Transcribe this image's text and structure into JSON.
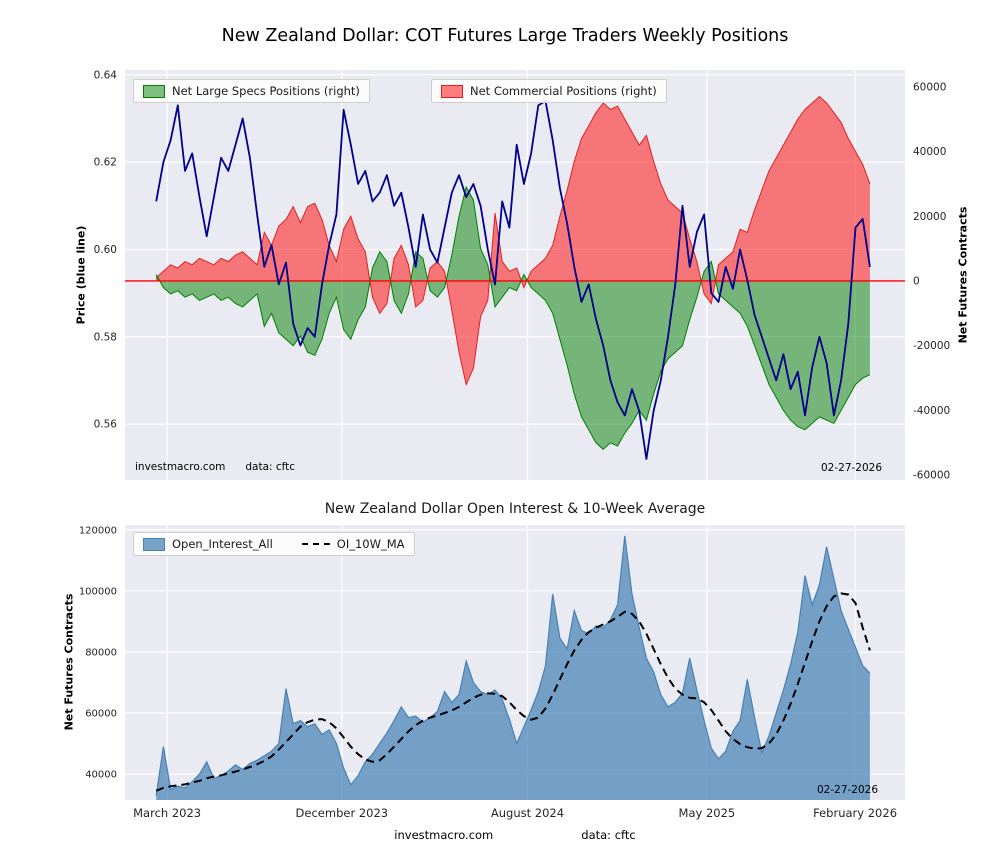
{
  "style": {
    "figure_bg": "#ffffff",
    "plot_bg": "#eaeaf2",
    "grid_color": "#ffffff"
  },
  "footer": {
    "site": "investmacro.com",
    "source": "data: cftc"
  },
  "chart_data": [
    {
      "type": "line+area",
      "title": "New Zealand Dollar: COT Futures Large Traders Weekly Positions",
      "x_domain": [
        0.04,
        0.955
      ],
      "x_ticks": {
        "labels": [
          "March 2023",
          "December 2023",
          "August 2024",
          "May 2025",
          "February 2026"
        ],
        "positions": [
          0.054,
          0.278,
          0.516,
          0.746,
          0.936
        ],
        "show_labels": false
      },
      "y_left": {
        "label": "Price (blue line)",
        "range": [
          0.5472,
          0.6411
        ],
        "tick_labels": [
          "0.64",
          "0.62",
          "0.60",
          "0.58",
          "0.56"
        ],
        "tick_values": [
          0.64,
          0.62,
          0.6,
          0.58,
          0.56
        ]
      },
      "y_right": {
        "label": "Net Futures Contracts",
        "range": [
          -61500,
          65200
        ],
        "tick_labels": [
          "60000",
          "40000",
          "20000",
          "0",
          "-20000",
          "-40000",
          "-60000"
        ],
        "tick_values": [
          60000,
          40000,
          20000,
          0,
          -20000,
          -40000,
          -60000
        ]
      },
      "zero_line_color": "#ff0000",
      "annotations": {
        "watermark": "investmacro.com",
        "source": "data: cftc",
        "date": "02-27-2026"
      },
      "series": [
        {
          "name": "Price (blue line)",
          "type": "line",
          "axis": "left",
          "color": "#00008b",
          "values": [
            0.611,
            0.62,
            0.625,
            0.633,
            0.618,
            0.622,
            0.612,
            0.603,
            0.612,
            0.621,
            0.618,
            0.624,
            0.63,
            0.621,
            0.608,
            0.596,
            0.601,
            0.592,
            0.597,
            0.583,
            0.578,
            0.582,
            0.58,
            0.592,
            0.601,
            0.608,
            0.632,
            0.624,
            0.615,
            0.618,
            0.611,
            0.613,
            0.617,
            0.61,
            0.613,
            0.605,
            0.596,
            0.608,
            0.6,
            0.597,
            0.605,
            0.613,
            0.617,
            0.612,
            0.615,
            0.61,
            0.6,
            0.592,
            0.611,
            0.605,
            0.624,
            0.615,
            0.622,
            0.633,
            0.634,
            0.625,
            0.614,
            0.606,
            0.596,
            0.588,
            0.592,
            0.584,
            0.578,
            0.57,
            0.565,
            0.562,
            0.568,
            0.563,
            0.552,
            0.563,
            0.57,
            0.58,
            0.592,
            0.61,
            0.596,
            0.604,
            0.608,
            0.59,
            0.588,
            0.596,
            0.591,
            0.6,
            0.593,
            0.585,
            0.58,
            0.575,
            0.57,
            0.576,
            0.568,
            0.572,
            0.562,
            0.573,
            0.58,
            0.574,
            0.562,
            0.57,
            0.583,
            0.605,
            0.607,
            0.596
          ]
        },
        {
          "name": "Net Large Specs Positions (right)",
          "type": "area",
          "axis": "right",
          "color": "#008000",
          "fill": "rgba(0,128,0,0.5)",
          "values": [
            2000,
            -2000,
            -4000,
            -3000,
            -5000,
            -4000,
            -6000,
            -5000,
            -4000,
            -6000,
            -5000,
            -7000,
            -8000,
            -6000,
            -4000,
            -14000,
            -10000,
            -16000,
            -18000,
            -20000,
            -17000,
            -22000,
            -23000,
            -18000,
            -10000,
            -5000,
            -15000,
            -18000,
            -12000,
            -8000,
            4000,
            9000,
            6000,
            -6000,
            -10000,
            -4000,
            9000,
            7000,
            -3000,
            -5000,
            -2000,
            8000,
            20000,
            29000,
            25000,
            10000,
            5000,
            -8000,
            -5000,
            -2000,
            -3000,
            2000,
            -2000,
            -4000,
            -6000,
            -10000,
            -18000,
            -26000,
            -35000,
            -42000,
            -46000,
            -50000,
            -52000,
            -50000,
            -51000,
            -47000,
            -44000,
            -40000,
            -43000,
            -35000,
            -28000,
            -24000,
            -22000,
            -20000,
            -12000,
            -5000,
            3000,
            6000,
            -4000,
            -6000,
            -8000,
            -10000,
            -14000,
            -20000,
            -26000,
            -32000,
            -36000,
            -40000,
            -43000,
            -45000,
            -46000,
            -44000,
            -42000,
            -43000,
            -44000,
            -40000,
            -36000,
            -32000,
            -30000,
            -29000
          ]
        },
        {
          "name": "Net Commercial Positions (right)",
          "type": "area",
          "axis": "right",
          "color": "#e02020",
          "fill": "rgba(255,0,0,0.5)",
          "values": [
            1000,
            3000,
            5000,
            4000,
            6000,
            5000,
            7000,
            6000,
            5000,
            7000,
            6000,
            8000,
            9000,
            7000,
            5000,
            15000,
            11000,
            17000,
            19000,
            23000,
            18000,
            23000,
            24000,
            19000,
            11000,
            6000,
            16000,
            20000,
            13000,
            9000,
            -5000,
            -10000,
            -7000,
            7000,
            11000,
            5000,
            -8000,
            -6000,
            4000,
            6000,
            3000,
            -9000,
            -22000,
            -32000,
            -27000,
            -11000,
            -6000,
            21000,
            6000,
            3000,
            4000,
            -2000,
            3000,
            5000,
            7000,
            11000,
            20000,
            28000,
            37000,
            44000,
            48000,
            52000,
            55000,
            53000,
            54000,
            50000,
            46000,
            42000,
            45000,
            37000,
            30000,
            25000,
            23000,
            21000,
            13000,
            6000,
            -4000,
            -7000,
            5000,
            7000,
            9000,
            16000,
            15000,
            22000,
            28000,
            34000,
            38000,
            42000,
            46000,
            50000,
            53000,
            55000,
            57000,
            55000,
            52000,
            49000,
            44000,
            40000,
            36000,
            30000
          ]
        }
      ]
    },
    {
      "type": "area+line",
      "title": "New Zealand Dollar Open Interest & 10-Week Average",
      "x_domain": [
        0.04,
        0.955
      ],
      "x_ticks": {
        "labels": [
          "March 2023",
          "December 2023",
          "August 2024",
          "May 2025",
          "February 2026"
        ],
        "positions": [
          0.054,
          0.278,
          0.516,
          0.746,
          0.936
        ],
        "show_labels": true
      },
      "y": {
        "label": "Net Futures Contracts",
        "range": [
          31500,
          121600
        ],
        "tick_labels": [
          "120000",
          "100000",
          "80000",
          "60000",
          "40000"
        ],
        "tick_values": [
          120000,
          100000,
          80000,
          60000,
          40000
        ]
      },
      "annotations": {
        "date": "02-27-2026"
      },
      "series": [
        {
          "name": "Open_Interest_All",
          "type": "area",
          "color": "#4682b4",
          "fill": "rgba(70,130,180,0.72)",
          "values": [
            33000,
            49000,
            35000,
            36000,
            35500,
            37500,
            40000,
            44000,
            38500,
            39500,
            41000,
            43000,
            41500,
            43500,
            44500,
            46000,
            47500,
            50000,
            68000,
            56500,
            57500,
            55500,
            56500,
            53000,
            54500,
            50000,
            42000,
            36500,
            39500,
            44000,
            46500,
            50000,
            53500,
            57500,
            62000,
            58500,
            59000,
            57000,
            58500,
            60500,
            67000,
            63500,
            66000,
            77000,
            70000,
            67000,
            66000,
            67500,
            64500,
            58000,
            50000,
            55500,
            61000,
            67000,
            75500,
            99000,
            84500,
            81000,
            93500,
            87000,
            86000,
            88500,
            88000,
            90500,
            95500,
            118000,
            99000,
            88000,
            78000,
            73500,
            66000,
            62000,
            63500,
            66500,
            78000,
            67500,
            57500,
            48500,
            45000,
            47500,
            54000,
            57500,
            71000,
            58500,
            47000,
            52500,
            60000,
            67500,
            76000,
            86500,
            105000,
            95500,
            102000,
            114500,
            104000,
            93500,
            87500,
            81500,
            75500,
            73000
          ]
        },
        {
          "name": "OI_10W_MA",
          "type": "dashed-line",
          "color": "#000000",
          "values": [
            34500,
            35500,
            36000,
            36300,
            36600,
            37200,
            37800,
            38600,
            39200,
            39600,
            40200,
            40800,
            41500,
            42300,
            43200,
            44300,
            45800,
            48000,
            50500,
            53000,
            55500,
            57000,
            57800,
            58000,
            57000,
            55000,
            52000,
            49000,
            46500,
            44800,
            44000,
            44500,
            46500,
            49000,
            51500,
            54000,
            56000,
            57500,
            58500,
            59200,
            60000,
            60800,
            62000,
            63500,
            65000,
            66000,
            66500,
            66300,
            65500,
            63500,
            61000,
            59000,
            57800,
            58500,
            61500,
            66000,
            71000,
            76000,
            80500,
            84000,
            86500,
            88000,
            89000,
            90000,
            91500,
            93200,
            92500,
            90000,
            86000,
            81000,
            76000,
            71500,
            68000,
            66000,
            65000,
            64800,
            63500,
            61000,
            57500,
            54000,
            51500,
            49800,
            48800,
            48300,
            48500,
            50000,
            53000,
            57500,
            63000,
            69500,
            76500,
            83500,
            90000,
            95000,
            98200,
            99200,
            98800,
            96000,
            88000,
            80500
          ]
        }
      ]
    }
  ]
}
